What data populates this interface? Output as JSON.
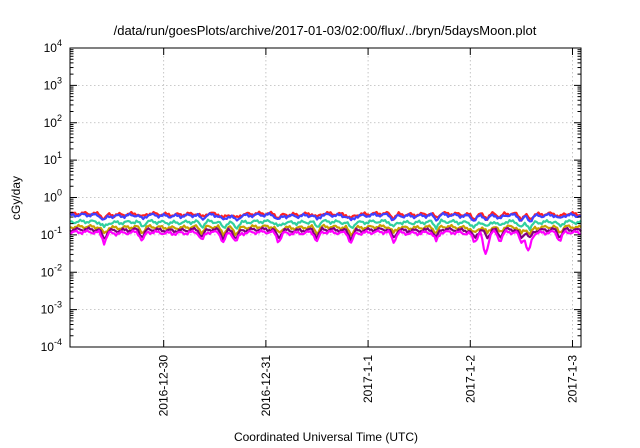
{
  "chart_data": {
    "type": "line",
    "title": "/data/run/goesPlots/archive/2017-01-03/02:00/flux/../bryn/5daysMoon.plot",
    "xlabel": "Coordinated Universal Time (UTC)",
    "ylabel": "cGy/day",
    "yscale": "log",
    "ylim": [
      0.0001,
      10000
    ],
    "y_ticks": [
      {
        "value": 0.0001,
        "base": "10",
        "exp": "-4"
      },
      {
        "value": 0.001,
        "base": "10",
        "exp": "-3"
      },
      {
        "value": 0.01,
        "base": "10",
        "exp": "-2"
      },
      {
        "value": 0.1,
        "base": "10",
        "exp": "-1"
      },
      {
        "value": 1,
        "base": "10",
        "exp": "0"
      },
      {
        "value": 10,
        "base": "10",
        "exp": "1"
      },
      {
        "value": 100,
        "base": "10",
        "exp": "2"
      },
      {
        "value": 1000,
        "base": "10",
        "exp": "3"
      },
      {
        "value": 10000,
        "base": "10",
        "exp": "4"
      }
    ],
    "xlim": [
      "2016-12-29 02:00",
      "2017-01-03 02:00"
    ],
    "x_ticks": [
      {
        "value": "2016-12-30 00:00",
        "label": "2016-12-30"
      },
      {
        "value": "2016-12-31 00:00",
        "label": "2016-12-31"
      },
      {
        "value": "2017-01-01 00:00",
        "label": "2017-1-1"
      },
      {
        "value": "2017-01-02 00:00",
        "label": "2017-1-2"
      },
      {
        "value": "2017-01-03 00:00",
        "label": "2017-1-3"
      }
    ],
    "grid": true,
    "legend": "none",
    "dip_times": [
      "2016-12-29 10:00",
      "2016-12-29 19:00",
      "2016-12-30 09:00",
      "2016-12-30 14:00",
      "2016-12-30 17:00",
      "2016-12-31 03:00",
      "2016-12-31 12:00",
      "2016-12-31 20:00",
      "2017-01-01 06:00",
      "2017-01-01 16:00",
      "2017-01-02 01:00",
      "2017-01-02 04:00",
      "2017-01-02 07:00",
      "2017-01-02 12:00",
      "2017-01-02 14:00",
      "2017-01-02 21:00"
    ],
    "series": [
      {
        "color": "#ff2020",
        "level": 0.36,
        "dip_factor": 0.78
      },
      {
        "color": "#4040ff",
        "level": 0.33,
        "dip_factor": 0.75
      },
      {
        "color": "#30d0a0",
        "level": 0.22,
        "dip_factor": 0.72
      },
      {
        "color": "#c8a000",
        "level": 0.16,
        "dip_factor": 0.68
      },
      {
        "color": "#800080",
        "level": 0.135,
        "dip_factor": 0.6
      },
      {
        "color": "#ff00ff",
        "level": 0.115,
        "dip_factor": 0.55
      }
    ],
    "deep_dips": [
      {
        "time": "2017-01-02 03:30",
        "min_value": 0.028
      },
      {
        "time": "2017-01-02 13:30",
        "min_value": 0.035
      }
    ]
  }
}
